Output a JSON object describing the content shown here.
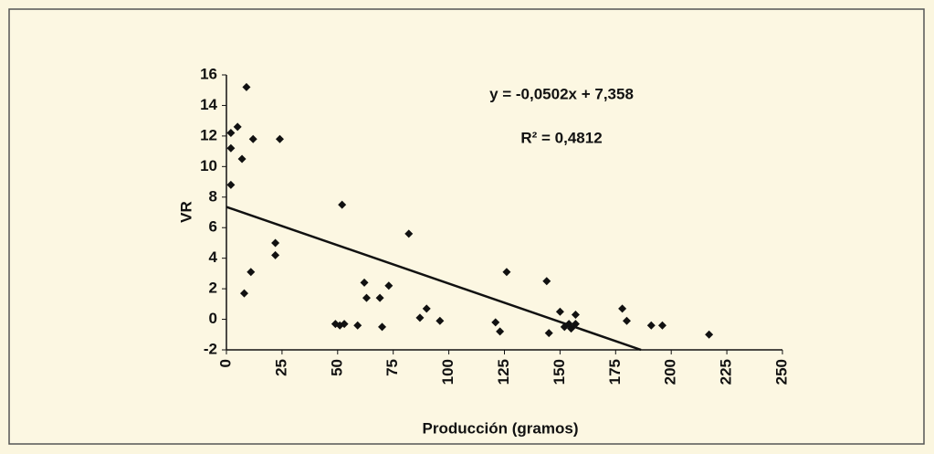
{
  "chart_data": {
    "type": "scatter",
    "x_label": "Producción (gramos)",
    "y_label": "VR",
    "xlim": [
      0,
      250
    ],
    "xticks": [
      0,
      25,
      50,
      75,
      100,
      125,
      150,
      175,
      200,
      225,
      250
    ],
    "ylim": [
      -2,
      16
    ],
    "yticks": [
      -2,
      0,
      2,
      4,
      6,
      8,
      10,
      12,
      14,
      16
    ],
    "grid": false,
    "color": "#111111",
    "series": [
      {
        "name": "VR",
        "color": "#111111",
        "x": [
          2,
          2,
          2,
          5,
          7,
          9,
          8,
          12,
          11,
          24,
          22,
          22,
          49,
          51,
          53,
          52,
          59,
          62,
          63,
          69,
          70,
          73,
          82,
          87,
          90,
          96,
          121,
          123,
          126,
          144,
          145,
          150,
          152,
          154,
          155,
          157,
          157,
          178,
          180,
          191,
          196,
          217
        ],
        "values": [
          12.2,
          11.2,
          8.8,
          12.6,
          10.5,
          15.2,
          1.7,
          11.8,
          3.1,
          11.8,
          5.0,
          4.2,
          -0.3,
          -0.4,
          -0.3,
          7.5,
          -0.4,
          2.4,
          1.4,
          1.4,
          -0.5,
          2.2,
          5.6,
          0.1,
          0.7,
          -0.1,
          -0.2,
          -0.8,
          3.1,
          2.5,
          -0.9,
          0.5,
          -0.5,
          -0.3,
          -0.6,
          0.3,
          -0.3,
          0.7,
          -0.1,
          -0.4,
          -0.4,
          -1.0
        ]
      }
    ],
    "trendline": {
      "slope": -0.0502,
      "intercept": 7.358,
      "label": "y = -0,0502x + 7,358",
      "r2_label": "R² = 0,4812"
    }
  }
}
